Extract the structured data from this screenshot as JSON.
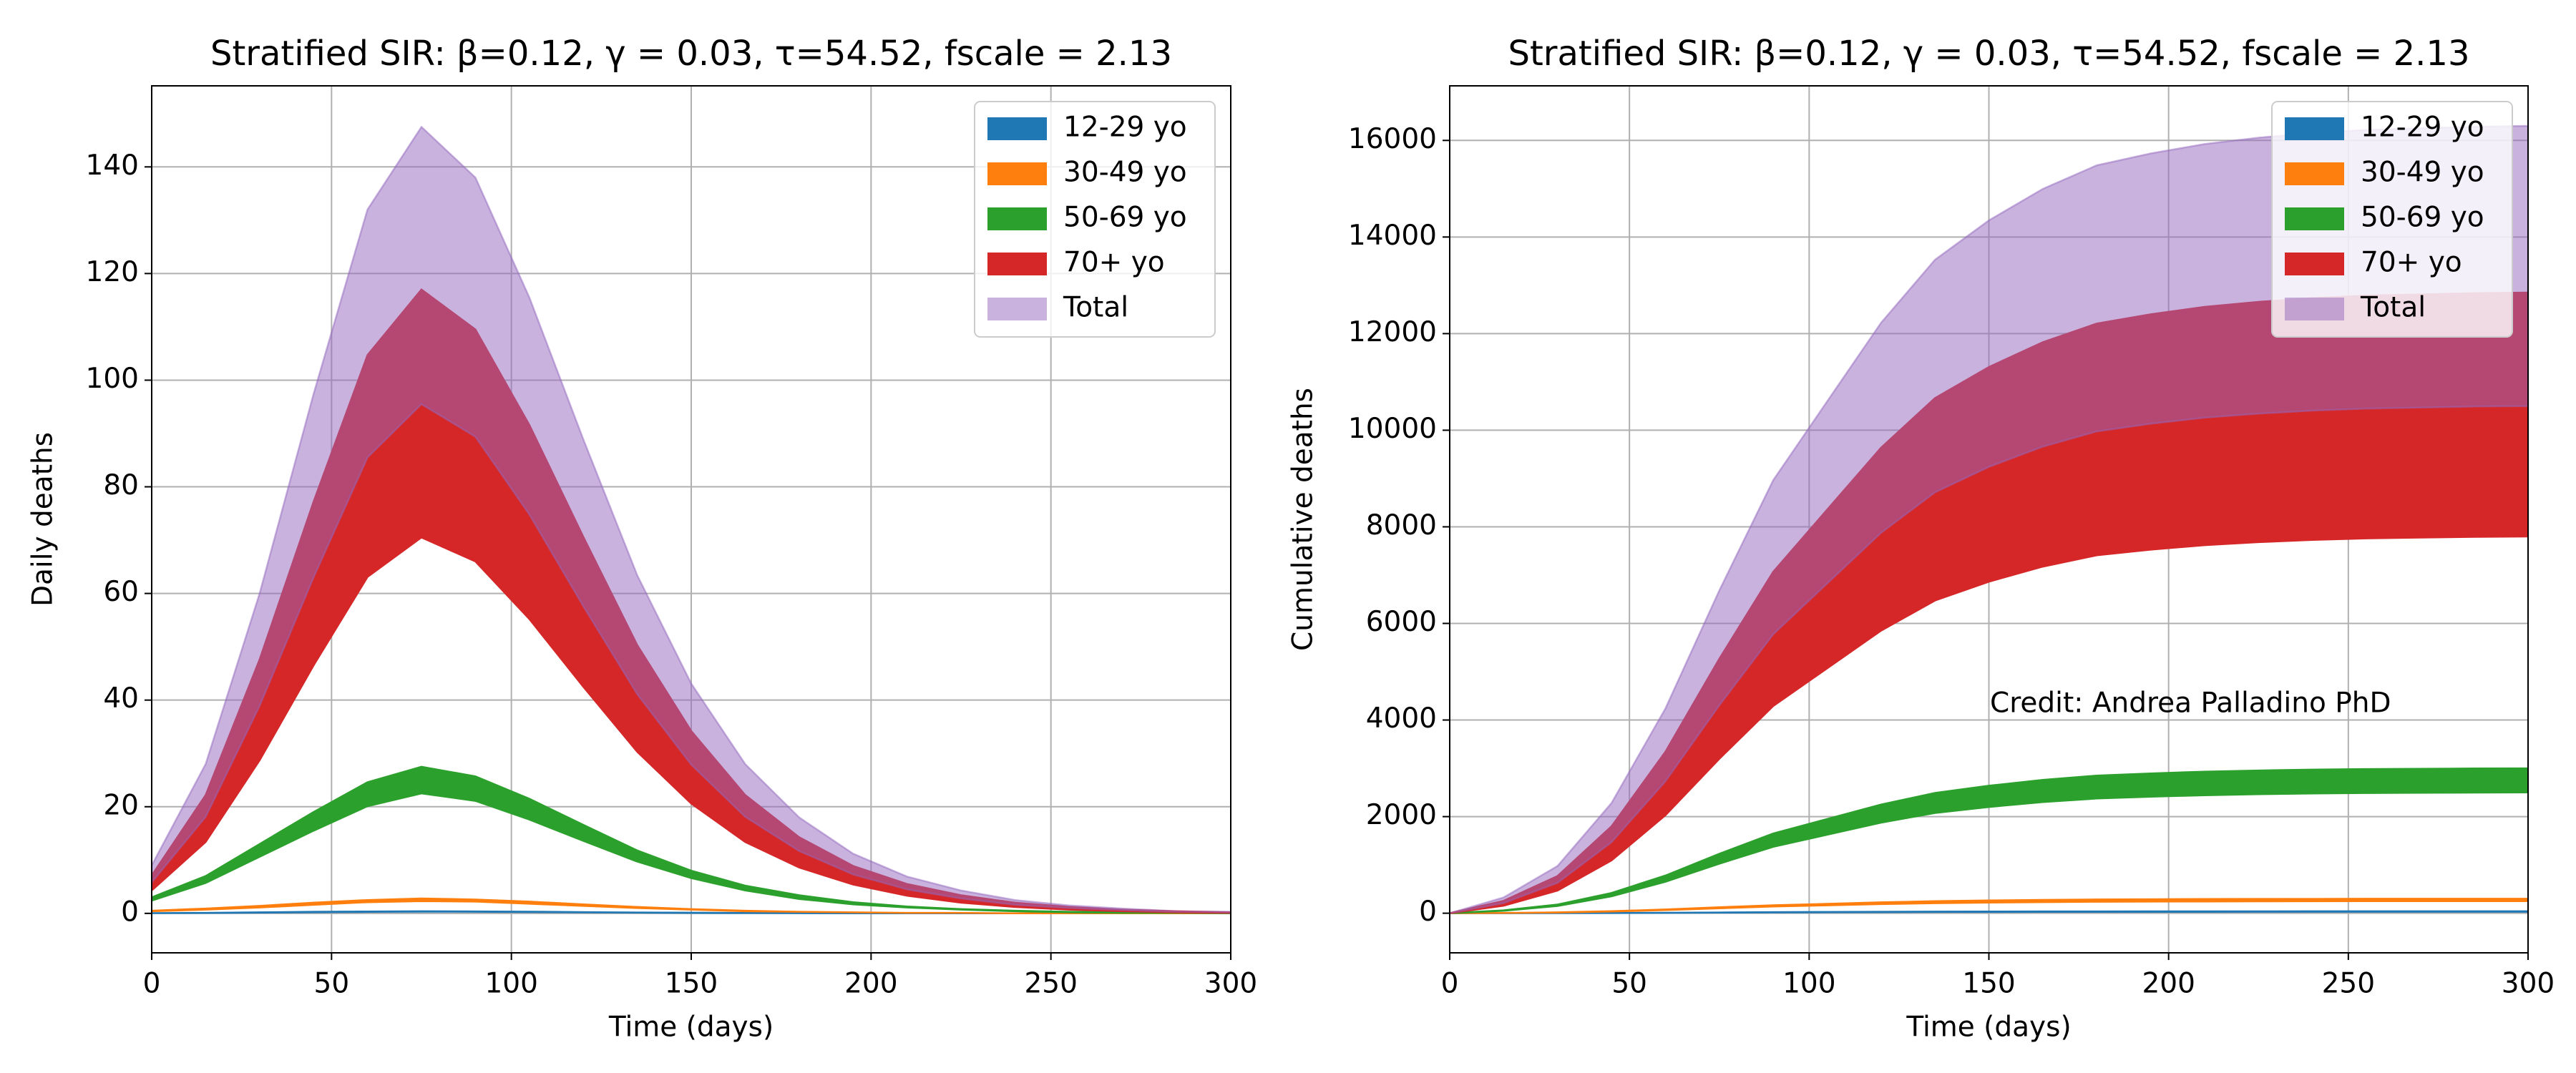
{
  "chart_data": [
    {
      "type": "band",
      "title": "Stratified SIR: β=0.12, γ = 0.03, τ=54.52, fscale = 2.13",
      "x_label": "Time (days)",
      "y_label": "Daily deaths",
      "xlim": [
        0,
        300
      ],
      "ylim": [
        -7.4,
        155.2
      ],
      "xticks": [
        0,
        50,
        100,
        150,
        200,
        250,
        300
      ],
      "yticks": [
        0,
        20,
        40,
        60,
        80,
        100,
        120,
        140
      ],
      "grid": true,
      "legend": "upper right",
      "x": [
        0,
        15,
        30,
        45,
        60,
        75,
        90,
        105,
        120,
        135,
        150,
        165,
        180,
        195,
        210,
        225,
        240,
        255,
        270,
        285,
        300
      ],
      "series": [
        {
          "name": "12-29 yo",
          "color": "#1f77b4",
          "upper": [
            0.05,
            0.1,
            0.2,
            0.3,
            0.35,
            0.4,
            0.37,
            0.31,
            0.24,
            0.17,
            0.12,
            0.08,
            0.05,
            0.03,
            0.02,
            0.01,
            0,
            0,
            0,
            0,
            0
          ],
          "lower": [
            0.04,
            0.08,
            0.15,
            0.22,
            0.28,
            0.32,
            0.3,
            0.25,
            0.19,
            0.14,
            0.09,
            0.06,
            0.04,
            0.02,
            0.01,
            0.01,
            0,
            0,
            0,
            0,
            0
          ]
        },
        {
          "name": "30-49 yo",
          "color": "#ff7f0e",
          "upper": [
            0.5,
            0.9,
            1.4,
            2,
            2.5,
            2.8,
            2.6,
            2.2,
            1.7,
            1.2,
            0.8,
            0.5,
            0.3,
            0.2,
            0.1,
            0.1,
            0,
            0,
            0,
            0,
            0
          ],
          "lower": [
            0.4,
            0.7,
            1.1,
            1.6,
            2.1,
            2.3,
            2.2,
            1.8,
            1.4,
            1,
            0.7,
            0.4,
            0.3,
            0.2,
            0.1,
            0.1,
            0,
            0,
            0,
            0,
            0
          ]
        },
        {
          "name": "50-69 yo",
          "color": "#2ca02c",
          "upper": [
            3,
            7,
            13,
            19,
            24.6,
            27.5,
            25.7,
            21.5,
            16.6,
            11.8,
            8,
            5.2,
            3.4,
            2.1,
            1.3,
            0.8,
            0.5,
            0.3,
            0.2,
            0.1,
            0.1
          ],
          "lower": [
            2.4,
            5.7,
            10.6,
            15.5,
            20.1,
            22.5,
            21.1,
            17.6,
            13.6,
            9.7,
            6.6,
            4.3,
            2.7,
            1.7,
            1.1,
            0.7,
            0.4,
            0.2,
            0.1,
            0.1,
            0
          ]
        },
        {
          "name": "70+ yo",
          "color": "#d62728",
          "upper": [
            7.1,
            22.2,
            47.6,
            77.2,
            104.7,
            117,
            109.5,
            91.6,
            70.6,
            50.3,
            34.2,
            22.2,
            14.3,
            8.9,
            5.5,
            3.4,
            2,
            1.2,
            0.7,
            0.4,
            0.2
          ],
          "lower": [
            4.3,
            13.4,
            28.7,
            46.5,
            63.1,
            70.5,
            66,
            55.2,
            42.5,
            30.3,
            20.6,
            13.4,
            8.6,
            5.4,
            3.3,
            2,
            1.2,
            0.7,
            0.4,
            0.2,
            0.1
          ]
        },
        {
          "name": "Total",
          "color": "#9467bd",
          "opacity": 0.5,
          "upper": [
            9,
            28,
            60,
            97.4,
            132,
            147.5,
            138,
            115.5,
            88.9,
            63.4,
            43.1,
            28,
            18,
            11.2,
            6.9,
            4.3,
            2.5,
            1.5,
            0.9,
            0.4,
            0.3
          ],
          "lower": [
            5.8,
            18.1,
            38.9,
            63,
            85.5,
            95.5,
            89.4,
            74.8,
            57.6,
            41.1,
            27.9,
            18.1,
            11.7,
            7.3,
            4.5,
            2.8,
            1.6,
            1,
            0.6,
            0.3,
            0.2
          ]
        }
      ]
    },
    {
      "type": "band",
      "title": "Stratified SIR: β=0.12, γ = 0.03, τ=54.52, fscale = 2.13",
      "x_label": "Time (days)",
      "y_label": "Cumulative deaths",
      "annotation": "Credit: Andrea Palladino PhD",
      "xlim": [
        0,
        300
      ],
      "ylim": [
        -820,
        17130
      ],
      "xticks": [
        0,
        50,
        100,
        150,
        200,
        250,
        300
      ],
      "yticks": [
        0,
        2000,
        4000,
        6000,
        8000,
        10000,
        12000,
        14000,
        16000
      ],
      "grid": true,
      "legend": "upper right",
      "x": [
        0,
        15,
        30,
        45,
        60,
        75,
        90,
        105,
        120,
        135,
        150,
        165,
        180,
        195,
        210,
        225,
        240,
        255,
        270,
        285,
        300
      ],
      "series": [
        {
          "name": "12-29 yo",
          "color": "#1f77b4",
          "upper": [
            0,
            1,
            2,
            6,
            10,
            16,
            22,
            26,
            30,
            33,
            35,
            37,
            38,
            39,
            39,
            39,
            40,
            40,
            40,
            40,
            40
          ],
          "lower": [
            0,
            1,
            2,
            4,
            8,
            12,
            17,
            20,
            23,
            25,
            26,
            28,
            29,
            29,
            29,
            30,
            30,
            30,
            30,
            30,
            30
          ]
        },
        {
          "name": "30-49 yo",
          "color": "#ff7f0e",
          "upper": [
            0,
            6,
            18,
            42,
            78,
            123,
            165,
            195,
            225,
            249,
            264,
            276,
            285,
            290,
            293,
            296,
            297,
            299,
            299,
            300,
            300
          ],
          "lower": [
            0,
            5,
            15,
            35,
            65,
            103,
            138,
            163,
            188,
            208,
            220,
            230,
            238,
            241,
            244,
            246,
            248,
            249,
            249,
            250,
            250
          ]
        },
        {
          "name": "50-69 yo",
          "color": "#2ca02c",
          "upper": [
            0,
            60,
            180,
            420,
            780,
            1230,
            1650,
            1950,
            2250,
            2490,
            2640,
            2760,
            2850,
            2895,
            2931,
            2955,
            2973,
            2985,
            2991,
            2997,
            3000
          ],
          "lower": [
            0,
            50,
            150,
            350,
            650,
            1025,
            1375,
            1625,
            1875,
            2075,
            2200,
            2300,
            2375,
            2413,
            2443,
            2463,
            2478,
            2488,
            2493,
            2498,
            2500
          ]
        },
        {
          "name": "70+ yo",
          "color": "#d62728",
          "upper": [
            0,
            257,
            771,
            1799,
            3341,
            5269,
            7068,
            8353,
            9638,
            10666,
            11308,
            11822,
            12208,
            12400,
            12554,
            12657,
            12735,
            12786,
            12811,
            12837,
            12850
          ],
          "lower": [
            0,
            156,
            468,
            1092,
            2028,
            3198,
            4290,
            5070,
            5850,
            6474,
            6864,
            7176,
            7410,
            7527,
            7621,
            7683,
            7730,
            7761,
            7777,
            7792,
            7800
          ]
        },
        {
          "name": "Total",
          "color": "#9467bd",
          "opacity": 0.5,
          "upper": [
            0,
            326,
            978,
            2282,
            4238,
            6683,
            8965,
            10595,
            12225,
            13529,
            14344,
            14996,
            15485,
            15730,
            15925,
            16056,
            16153,
            16219,
            16251,
            16284,
            16300
          ],
          "lower": [
            0,
            210,
            630,
            1470,
            2730,
            4305,
            5775,
            6825,
            7875,
            8715,
            9240,
            9660,
            9975,
            10133,
            10259,
            10343,
            10406,
            10448,
            10469,
            10490,
            10500
          ]
        }
      ]
    }
  ]
}
